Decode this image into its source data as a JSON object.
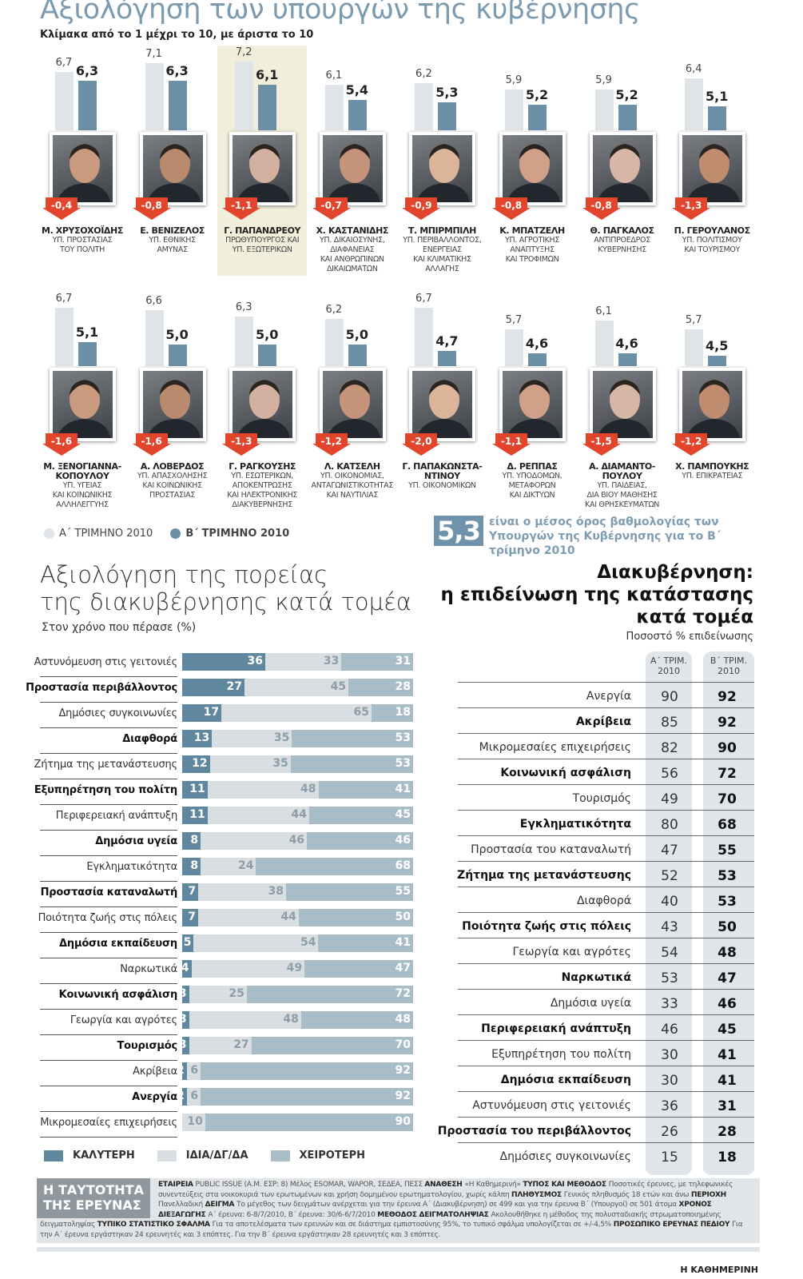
{
  "header": {
    "title": "Αξιολόγηση των υπουργών της κυβέρνησης",
    "subtitle": "Κλίμακα από το 1 μέχρι το 10, με άριστα το 10"
  },
  "colors": {
    "q1": "#dfe4e8",
    "q2": "#6c90a6",
    "badge": "#e2452b",
    "better": "#5f889f",
    "same": "#d8dee2",
    "worse": "#a9bdc9",
    "highlight": "#f1eedb"
  },
  "chart_data": [
    {
      "type": "bar",
      "title": "Αξιολόγηση των υπουργών της κυβέρνησης",
      "subtitle": "Κλίμακα από το 1 μέχρι το 10, με άριστα το 10",
      "legend": [
        "Α΄ ΤΡΙΜΗΝΟ 2010",
        "Β΄ ΤΡΙΜΗΝΟ 2010"
      ],
      "ministers": [
        {
          "name": "Μ. ΧΡΥΣΟΧΟΪΔΗΣ",
          "role": [
            "ΥΠ. ΠΡΟΣΤΑΣΙΑΣ",
            "ΤΟΥ ΠΟΛΙΤΗ"
          ],
          "q1": "6,7",
          "q2": "6,3",
          "change": "-0,4"
        },
        {
          "name": "Ε. ΒΕΝΙΖΕΛΟΣ",
          "role": [
            "ΥΠ. ΕΘΝΙΚΗΣ",
            "ΑΜΥΝΑΣ"
          ],
          "q1": "7,1",
          "q2": "6,3",
          "change": "-0,8"
        },
        {
          "name": "Γ. ΠΑΠΑΝΔΡΕΟΥ",
          "role": [
            "ΠΡΩΘΥΠΟΥΡΓΟΣ ΚΑΙ",
            "ΥΠ. ΕΞΩΤΕΡΙΚΩΝ"
          ],
          "q1": "7,2",
          "q2": "6,1",
          "change": "-1,1",
          "highlight": true
        },
        {
          "name": "Χ. ΚΑΣΤΑΝΙΔΗΣ",
          "role": [
            "ΥΠ. ΔΙΚΑΙΟΣΥΝΗΣ,",
            "ΔΙΑΦΑΝΕΙΑΣ",
            "ΚΑΙ ΑΝΘΡΩΠΙΝΩΝ",
            "ΔΙΚΑΙΩΜΑΤΩΝ"
          ],
          "q1": "6,1",
          "q2": "5,4",
          "change": "-0,7"
        },
        {
          "name": "Τ. ΜΠΙΡΜΠΙΛΗ",
          "role": [
            "ΥΠ. ΠΕΡΙΒΑΛΛΟΝΤΟΣ,",
            "ΕΝΕΡΓΕΙΑΣ",
            "ΚΑΙ ΚΛΙΜΑΤΙΚΗΣ",
            "ΑΛΛΑΓΗΣ"
          ],
          "q1": "6,2",
          "q2": "5,3",
          "change": "-0,9"
        },
        {
          "name": "Κ. ΜΠΑΤΖΕΛΗ",
          "role": [
            "ΥΠ. ΑΓΡΟΤΙΚΗΣ",
            "ΑΝΑΠΤΥΞΗΣ",
            "ΚΑΙ ΤΡΟΦΙΜΩΝ"
          ],
          "q1": "5,9",
          "q2": "5,2",
          "change": "-0,8"
        },
        {
          "name": "Θ. ΠΑΓΚΑΛΟΣ",
          "role": [
            "ΑΝΤΙΠΡΟΕΔΡΟΣ",
            "ΚΥΒΕΡΝΗΣΗΣ"
          ],
          "q1": "5,9",
          "q2": "5,2",
          "change": "-0,8"
        },
        {
          "name": "Π. ΓΕΡΟΥΛΑΝΟΣ",
          "role": [
            "ΥΠ. ΠΟΛΙΤΙΣΜΟΥ",
            "ΚΑΙ ΤΟΥΡΙΣΜΟΥ"
          ],
          "q1": "6,4",
          "q2": "5,1",
          "change": "-1,3"
        },
        {
          "name": "Μ. ΞΕΝΟΓΙΑΝΝΑ- ΚΟΠΟΥΛΟΥ",
          "role": [
            "ΥΠ. ΥΓΕΙΑΣ",
            "ΚΑΙ ΚΟΙΝΩΝΙΚΗΣ",
            "ΑΛΛΗΛΕΓΓΥΗΣ"
          ],
          "q1": "6,7",
          "q2": "5,1",
          "change": "-1,6"
        },
        {
          "name": "Α. ΛΟΒΕΡΔΟΣ",
          "role": [
            "ΥΠ. ΑΠΑΣΧΟΛΗΣΗΣ",
            "ΚΑΙ ΚΟΙΝΩΝΙΚΗΣ",
            "ΠΡΟΣΤΑΣΙΑΣ"
          ],
          "q1": "6,6",
          "q2": "5,0",
          "change": "-1,6"
        },
        {
          "name": "Γ. ΡΑΓΚΟΥΣΗΣ",
          "role": [
            "ΥΠ. ΕΣΩΤΕΡΙΚΩΝ,",
            "ΑΠΟΚΕΝΤΡΩΣΗΣ",
            "ΚΑΙ ΗΛΕΚΤΡΟΝΙΚΗΣ",
            "ΔΙΑΚΥΒΕΡΝΗΣΗΣ"
          ],
          "q1": "6,3",
          "q2": "5,0",
          "change": "-1,3"
        },
        {
          "name": "Λ. ΚΑΤΣΕΛΗ",
          "role": [
            "ΥΠ. ΟΙΚΟΝΟΜΙΑΣ,",
            "ΑΝΤΑΓΩΝΙΣΤΙΚΟΤΗΤΑΣ",
            "ΚΑΙ ΝΑΥΤΙΛΙΑΣ"
          ],
          "q1": "6,2",
          "q2": "5,0",
          "change": "-1,2"
        },
        {
          "name": "Γ. ΠΑΠΑΚΩΝΣΤΑ- ΝΤΙΝΟΥ",
          "role": [
            "ΥΠ. ΟΙΚΟΝΟΜΙΚΩΝ"
          ],
          "q1": "6,7",
          "q2": "4,7",
          "change": "-2,0"
        },
        {
          "name": "Δ. ΡΕΠΠΑΣ",
          "role": [
            "ΥΠ. ΥΠΟΔΟΜΩΝ,",
            "ΜΕΤΑΦΟΡΩΝ",
            "ΚΑΙ ΔΙΚΤΥΩΝ"
          ],
          "q1": "5,7",
          "q2": "4,6",
          "change": "-1,1"
        },
        {
          "name": "Α. ΔΙΑΜΑΝΤΟ- ΠΟΥΛΟΥ",
          "role": [
            "ΥΠ. ΠΑΙΔΕΙΑΣ,",
            "ΔΙΑ ΒΙΟΥ ΜΑΘΗΣΗΣ",
            "ΚΑΙ ΘΡΗΣΚΕΥΜΑΤΩΝ"
          ],
          "q1": "6,1",
          "q2": "4,6",
          "change": "-1,5"
        },
        {
          "name": "Χ. ΠΑΜΠΟΥΚΗΣ",
          "role": [
            "ΥΠ. ΕΠΙΚΡΑΤΕΙΑΣ"
          ],
          "q1": "5,7",
          "q2": "4,5",
          "change": "-1,2"
        }
      ],
      "average": {
        "value": "5,3",
        "text": "είναι ο μέσος όρος βαθμολογίας των Υπουργών της Κυβέρνησης για το Β΄ τρίμηνο 2010"
      }
    },
    {
      "type": "bar",
      "stacked": true,
      "title": "Αξιολόγηση της πορείας της διακυβέρνησης κατά τομέα",
      "subtitle": "Στον χρόνο που πέρασε (%)",
      "legend": [
        "ΚΑΛΥΤΕΡΗ",
        "ΙΔΙΑ/ΔΓ/ΔΑ",
        "ΧΕΙΡΟΤΕΡΗ"
      ],
      "rows": [
        {
          "label": "Αστυνόμευση στις γειτονιές",
          "better": 36,
          "same": 33,
          "worse": 31
        },
        {
          "label": "Προστασία περιβάλλοντος",
          "better": 27,
          "same": 45,
          "worse": 28
        },
        {
          "label": "Δημόσιες συγκοινωνίες",
          "better": 17,
          "same": 65,
          "worse": 18
        },
        {
          "label": "Διαφθορά",
          "better": 13,
          "same": 35,
          "worse": 53
        },
        {
          "label": "Ζήτημα της μετανάστευσης",
          "better": 12,
          "same": 35,
          "worse": 53
        },
        {
          "label": "Εξυπηρέτηση του πολίτη",
          "better": 11,
          "same": 48,
          "worse": 41
        },
        {
          "label": "Περιφερειακή ανάπτυξη",
          "better": 11,
          "same": 44,
          "worse": 45
        },
        {
          "label": "Δημόσια υγεία",
          "better": 8,
          "same": 46,
          "worse": 46
        },
        {
          "label": "Εγκληματικότητα",
          "better": 8,
          "same": 24,
          "worse": 68
        },
        {
          "label": "Προστασία καταναλωτή",
          "better": 7,
          "same": 38,
          "worse": 55
        },
        {
          "label": "Ποιότητα ζωής στις πόλεις",
          "better": 7,
          "same": 44,
          "worse": 50
        },
        {
          "label": "Δημόσια εκπαίδευση",
          "better": 5,
          "same": 54,
          "worse": 41
        },
        {
          "label": "Ναρκωτικά",
          "better": 4,
          "same": 49,
          "worse": 47
        },
        {
          "label": "Κοινωνική ασφάλιση",
          "better": 3,
          "same": 25,
          "worse": 72
        },
        {
          "label": "Γεωργία και αγρότες",
          "better": 3,
          "same": 48,
          "worse": 48
        },
        {
          "label": "Τουρισμός",
          "better": 3,
          "same": 27,
          "worse": 70
        },
        {
          "label": "Ακρίβεια",
          "better": 2,
          "same": 6,
          "worse": 92
        },
        {
          "label": "Ανεργία",
          "better": 2,
          "same": 6,
          "worse": 92
        },
        {
          "label": "Μικρομεσαίες επιχειρήσεις",
          "better": 0,
          "same": 10,
          "worse": 90
        }
      ]
    },
    {
      "type": "table",
      "title": "Διακυβέρνηση: η επιδείνωση της κατάστασης κατά τομέα",
      "subtitle": "Ποσοστό % επιδείνωσης",
      "columns": [
        "Α΄ ΤΡΙΜ. 2010",
        "Β΄ ΤΡΙΜ. 2010"
      ],
      "rows": [
        {
          "label": "Ανεργία",
          "a": 90,
          "b": 92
        },
        {
          "label": "Ακρίβεια",
          "a": 85,
          "b": 92
        },
        {
          "label": "Μικρομεσαίες επιχειρήσεις",
          "a": 82,
          "b": 90
        },
        {
          "label": "Κοινωνική ασφάλιση",
          "a": 56,
          "b": 72
        },
        {
          "label": "Τουρισμός",
          "a": 49,
          "b": 70
        },
        {
          "label": "Εγκληματικότητα",
          "a": 80,
          "b": 68
        },
        {
          "label": "Προστασία του καταναλωτή",
          "a": 47,
          "b": 55
        },
        {
          "label": "Ζήτημα της μετανάστευσης",
          "a": 52,
          "b": 53
        },
        {
          "label": "Διαφθορά",
          "a": 40,
          "b": 53
        },
        {
          "label": "Ποιότητα ζωής στις πόλεις",
          "a": 43,
          "b": 50
        },
        {
          "label": "Γεωργία και αγρότες",
          "a": 54,
          "b": 48
        },
        {
          "label": "Ναρκωτικά",
          "a": 53,
          "b": 47
        },
        {
          "label": "Δημόσια υγεία",
          "a": 33,
          "b": 46
        },
        {
          "label": "Περιφερειακή ανάπτυξη",
          "a": 46,
          "b": 45
        },
        {
          "label": "Εξυπηρέτηση του πολίτη",
          "a": 30,
          "b": 41
        },
        {
          "label": "Δημόσια εκπαίδευση",
          "a": 30,
          "b": 41
        },
        {
          "label": "Αστυνόμευση στις γειτονιές",
          "a": 36,
          "b": 31
        },
        {
          "label": "Προστασία του περιβάλλοντος",
          "a": 26,
          "b": 28
        },
        {
          "label": "Δημόσιες συγκοινωνίες",
          "a": 15,
          "b": 18
        }
      ]
    }
  ],
  "left": {
    "title1": "Αξιολόγηση της πορείας",
    "title2": "της διακυβέρνησης κατά τομέα"
  },
  "right": {
    "title1": "Διακυβέρνηση:",
    "title2": "η επιδείνωση της κατάστασης",
    "title3": "κατά τομέα",
    "colA1": "Α΄ ΤΡΙΜ.",
    "colA2": "2010",
    "colB1": "Β΄ ΤΡΙΜ.",
    "colB2": "2010"
  },
  "footer": {
    "label1": "Η ΤΑΥΤΟΤΗΤΑ",
    "label2": "ΤΗΣ ΕΡΕΥΝΑΣ",
    "segments": [
      {
        "b": true,
        "t": "ΕΤΑΙΡΕΙΑ "
      },
      {
        "t": "PUBLIC ISSUE (Α.Μ. ΕΣΡ: 8) Μέλος ESOMAR, WAPOR, ΣΕΔΕΑ, ΠΕΣΣ  "
      },
      {
        "b": true,
        "t": "ΑΝΑΘΕΣΗ "
      },
      {
        "t": "«Η Καθημερινή» "
      },
      {
        "b": true,
        "t": "ΤΥΠΟΣ ΚΑΙ ΜΕΘΟΔΟΣ "
      },
      {
        "t": "Ποσοτικές έρευνες, με τηλεφωνικές συνεντεύξεις στα νοικοκυριά των ερωτωμένων και χρήση δομημένου ερωτηματολογίου, χωρίς κάλπη "
      },
      {
        "b": true,
        "t": "ΠΛΗΘΥΣΜΟΣ "
      },
      {
        "t": "Γενικός πληθυσμός 18 ετών και άνω "
      },
      {
        "b": true,
        "t": "ΠΕΡΙΟΧΗ "
      },
      {
        "t": "Πανελλαδική "
      },
      {
        "b": true,
        "t": "ΔΕΙΓΜΑ "
      },
      {
        "t": "Το μέγεθος των δειγμάτων ανέρχεται για την έρευνα Α΄ (Διακυβέρνηση) σε 499 και για την έρευνα Β΄ (Υπουργοί) σε 501 άτομα "
      },
      {
        "b": true,
        "t": "ΧΡΟΝΟΣ ΔΙΕΞΑΓΩΓΗΣ "
      },
      {
        "t": "Α΄ έρευνα: 6-8/7/2010, Β΄ έρευνα: 30/6-6/7/2010 "
      },
      {
        "b": true,
        "t": "ΜΕΘΟΔΟΣ ΔΕΙΓΜΑΤΟΛΗΨΙΑΣ "
      },
      {
        "t": "Ακολουθήθηκε η μέθοδος της πολυσταδιακής στρωματοποιημένης δειγματοληψίας "
      },
      {
        "b": true,
        "t": "ΤΥΠΙΚΟ ΣΤΑΤΙΣΤΙΚΟ ΣΦΑΛΜΑ "
      },
      {
        "t": "Για τα αποτελέσματα των ερευνών και σε διάστημα εμπιστοσύνης 95%, το τυπικό σφάλμα υπολογίζεται σε +/-4,5% "
      },
      {
        "b": true,
        "t": "ΠΡΟΣΩΠΙΚΟ ΕΡΕΥΝΑΣ ΠΕΔΙΟΥ "
      },
      {
        "t": "Για την Α΄ έρευνα εργάστηκαν 24 ερευνητές και 3 επόπτες. Για την Β΄ έρευνα εργάστηκαν 28 ερευνητές και 3 επόπτες."
      }
    ],
    "brand": "Η ΚΑΘΗΜΕΡΙΝΗ"
  }
}
